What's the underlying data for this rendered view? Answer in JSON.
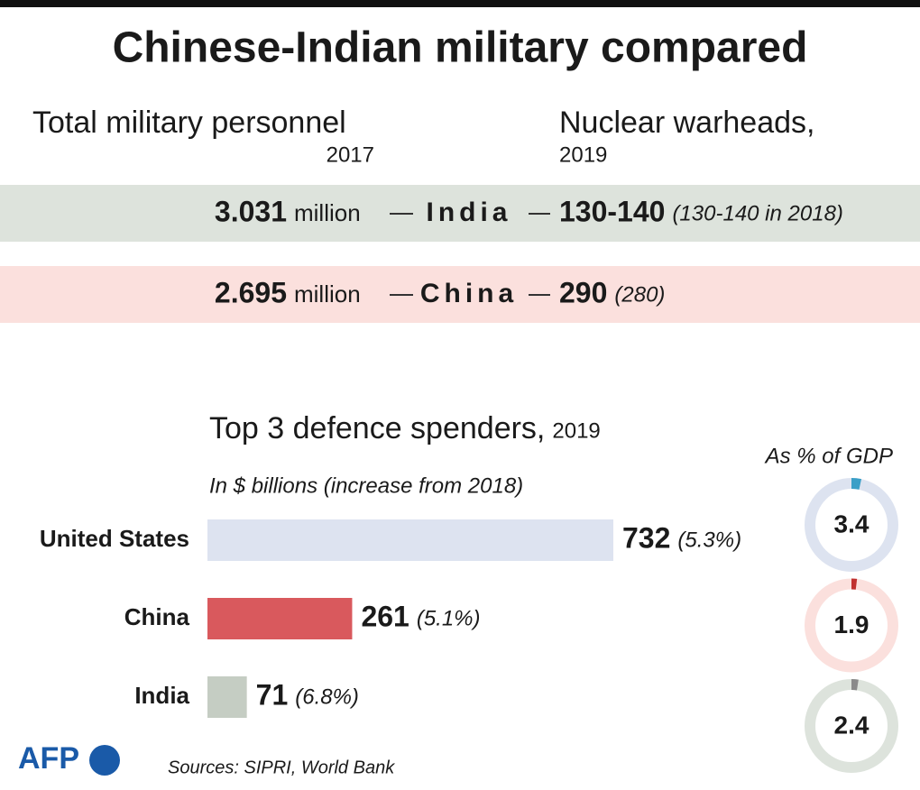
{
  "title": "Chinese-Indian military compared",
  "personnel": {
    "label": "Total military personnel",
    "year": "2017"
  },
  "warheads": {
    "label": "Nuclear warheads,",
    "year": "2019"
  },
  "rows": [
    {
      "personnel": "3.031",
      "unit": "million",
      "country": "India",
      "warheads": "130-140",
      "previous": "(130-140 in 2018)",
      "color": "#dde3dc"
    },
    {
      "personnel": "2.695",
      "unit": "million",
      "country": "China",
      "warheads": "290",
      "previous": "(280)",
      "color": "#fbe0dd"
    }
  ],
  "chart_data": [
    {
      "type": "bar",
      "title": "Top 3 defence spenders,",
      "title_year": "2019",
      "subtitle": "In $ billions (increase from 2018)",
      "categories": [
        "United States",
        "China",
        "India"
      ],
      "values": [
        732,
        261,
        71
      ],
      "increase_labels": [
        "(5.3%)",
        "(5.1%)",
        "(6.8%)"
      ],
      "colors": [
        "#dde3f0",
        "#d9595d",
        "#c5cdc3"
      ]
    },
    {
      "type": "donut",
      "title": "As % of GDP",
      "values": [
        3.4,
        1.9,
        2.4
      ],
      "colors": [
        "#3a9fc7",
        "#c0302f",
        "#8a8a8a"
      ],
      "track_colors": [
        "#dde3f0",
        "#fbe0dd",
        "#dde3dc"
      ]
    }
  ],
  "logo": "AFP",
  "source": "Sources: SIPRI, World Bank"
}
